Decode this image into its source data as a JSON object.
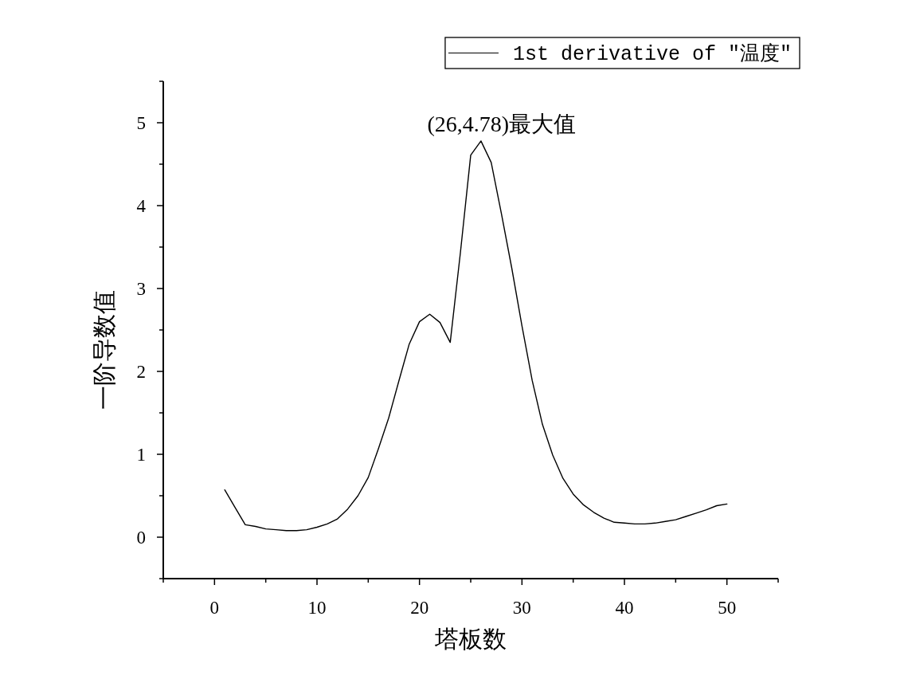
{
  "chart_data": {
    "type": "line",
    "xlabel": "塔板数",
    "ylabel": "一阶导数值",
    "x": [
      1,
      2,
      3,
      4,
      5,
      6,
      7,
      8,
      9,
      10,
      11,
      12,
      13,
      14,
      15,
      16,
      17,
      18,
      19,
      20,
      21,
      22,
      23,
      24,
      25,
      26,
      27,
      28,
      29,
      30,
      31,
      32,
      33,
      34,
      35,
      36,
      37,
      38,
      39,
      40,
      41,
      42,
      43,
      44,
      45,
      46,
      47,
      48,
      49,
      50
    ],
    "series": [
      {
        "name": "1st derivative of \"温度\"",
        "color": "#000000",
        "values": [
          0.57,
          0.36,
          0.15,
          0.13,
          0.1,
          0.09,
          0.08,
          0.08,
          0.09,
          0.12,
          0.16,
          0.22,
          0.34,
          0.5,
          0.72,
          1.07,
          1.44,
          1.89,
          2.33,
          2.6,
          2.69,
          2.59,
          2.35,
          3.44,
          4.61,
          4.78,
          4.52,
          3.9,
          3.25,
          2.55,
          1.89,
          1.36,
          0.99,
          0.71,
          0.52,
          0.39,
          0.3,
          0.23,
          0.18,
          0.17,
          0.16,
          0.16,
          0.17,
          0.19,
          0.21,
          0.25,
          0.29,
          0.33,
          0.38,
          0.4
        ]
      }
    ],
    "xlim": [
      -5,
      55
    ],
    "ylim": [
      -0.5,
      5.5
    ],
    "xticks": [
      {
        "value": -5,
        "label": null
      },
      0,
      {
        "value": 5,
        "label": null
      },
      10,
      {
        "value": 15,
        "label": null
      },
      20,
      {
        "value": 25,
        "label": null
      },
      30,
      {
        "value": 35,
        "label": null
      },
      40,
      {
        "value": 45,
        "label": null
      },
      50,
      {
        "value": 55,
        "label": null
      }
    ],
    "yticks": [
      {
        "value": -0.5,
        "label": null
      },
      0,
      {
        "value": 0.5,
        "label": null
      },
      1,
      {
        "value": 1.5,
        "label": null
      },
      2,
      {
        "value": 2.5,
        "label": null
      },
      3,
      {
        "value": 3.5,
        "label": null
      },
      4,
      {
        "value": 4.5,
        "label": null
      },
      5,
      {
        "value": 5.5,
        "label": null
      }
    ],
    "legend": "top right",
    "line_style": "solid",
    "annotations": [
      {
        "text": "(26,4.78)最大值",
        "x": 26,
        "y": 4.78
      }
    ]
  }
}
